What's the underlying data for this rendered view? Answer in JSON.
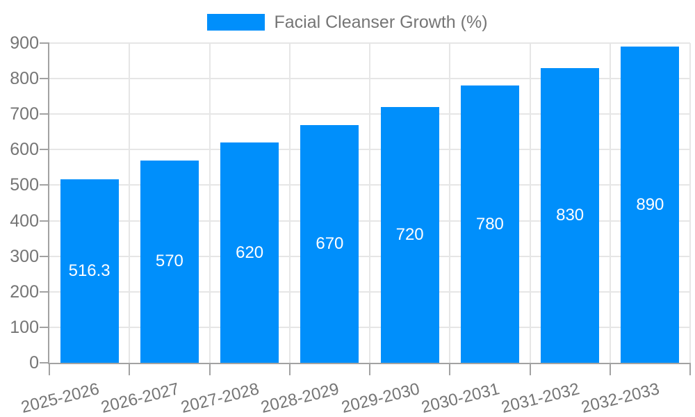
{
  "chart_data": {
    "type": "bar",
    "title": "Facial Cleanser Growth (%)",
    "series_name": "Facial Cleanser Growth (%)",
    "categories": [
      "2025-2026",
      "2026-2027",
      "2027-2028",
      "2028-2029",
      "2029-2030",
      "2030-2031",
      "2031-2032",
      "2032-2033"
    ],
    "values": [
      516.3,
      570,
      620,
      670,
      720,
      780,
      830,
      890
    ],
    "value_labels": [
      "516.3",
      "570",
      "620",
      "670",
      "720",
      "780",
      "830",
      "890"
    ],
    "xlabel": "",
    "ylabel": "",
    "ylim": [
      0,
      900
    ],
    "ytick_step": 100,
    "ytick_labels": [
      "0",
      "100",
      "200",
      "300",
      "400",
      "500",
      "600",
      "700",
      "800",
      "900"
    ],
    "grid": true,
    "legend_position": "top",
    "colors": {
      "bar": "#008FFB",
      "grid_line": "#e6e6e6",
      "axis_line": "#a2a2a2",
      "axis_label": "#757575",
      "legend_label": "#757575",
      "value_label": "#ffffff",
      "background": "#ffffff"
    }
  }
}
